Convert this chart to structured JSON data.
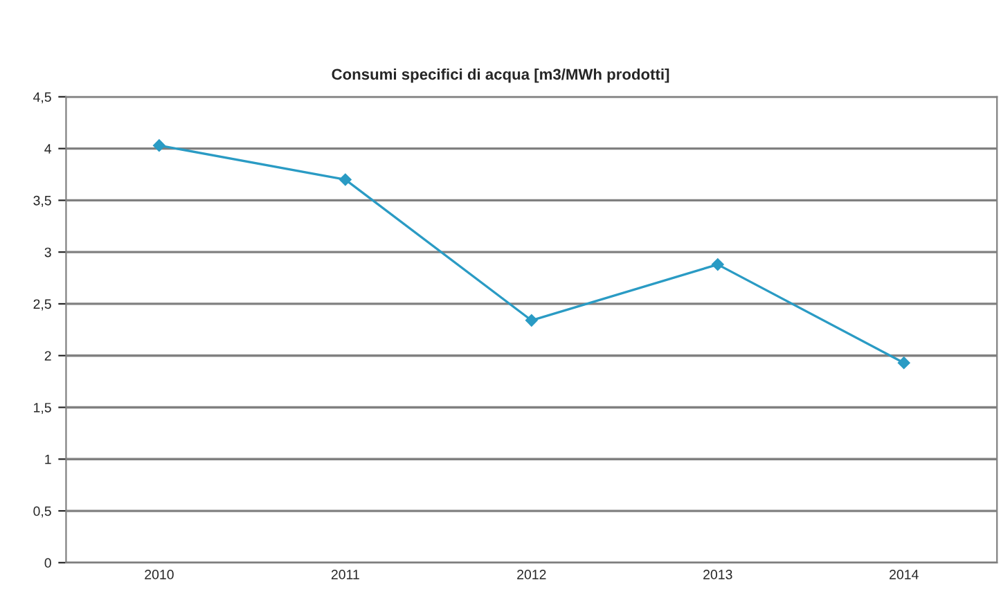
{
  "chart_data": {
    "type": "line",
    "title": "Consumi specifici di acqua [m3/MWh prodotti]",
    "categories": [
      "2010",
      "2011",
      "2012",
      "2013",
      "2014"
    ],
    "series": [
      {
        "color": "#2a9bc4",
        "values": [
          4.03,
          3.7,
          2.34,
          2.88,
          1.93
        ]
      }
    ],
    "ylim": [
      0,
      4.5
    ],
    "yticks": [
      {
        "value": 0,
        "label": "0"
      },
      {
        "value": 0.5,
        "label": "0,5"
      },
      {
        "value": 1,
        "label": "1"
      },
      {
        "value": 1.5,
        "label": "1,5"
      },
      {
        "value": 2,
        "label": "2"
      },
      {
        "value": 2.5,
        "label": "2,5"
      },
      {
        "value": 3,
        "label": "3"
      },
      {
        "value": 3.5,
        "label": "3,5"
      },
      {
        "value": 4,
        "label": "4"
      },
      {
        "value": 4.5,
        "label": "4,5"
      }
    ],
    "grid": "y",
    "marker": "diamond",
    "line_style": "solid"
  }
}
